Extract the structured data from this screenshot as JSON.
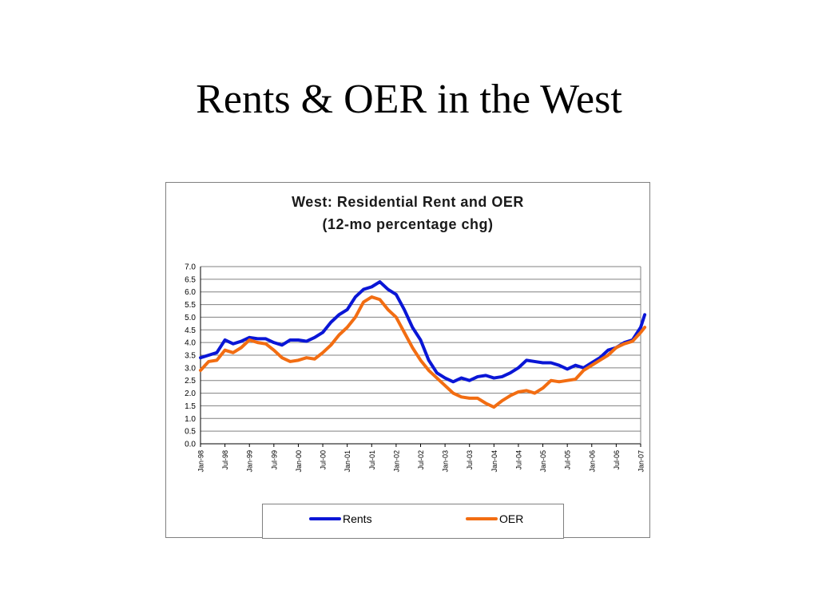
{
  "slide": {
    "title": "Rents & OER in the West"
  },
  "colors": {
    "rents": "#0a16d6",
    "oer": "#f26d12",
    "grid": "#808080"
  },
  "chart_data": {
    "type": "line",
    "title": "West: Residential Rent and OER",
    "subtitle": "(12-mo percentage chg)",
    "xlabel": "",
    "ylabel": "",
    "ylim": [
      0,
      7
    ],
    "yticks": [
      "0.0",
      "0.5",
      "1.0",
      "1.5",
      "2.0",
      "2.5",
      "3.0",
      "3.5",
      "4.0",
      "4.5",
      "5.0",
      "5.5",
      "6.0",
      "6.5",
      "7.0"
    ],
    "xticks": [
      "Jan-98",
      "Jul-98",
      "Jan-99",
      "Jul-99",
      "Jan-00",
      "Jul-00",
      "Jan-01",
      "Jul-01",
      "Jan-02",
      "Jul-02",
      "Jan-03",
      "Jul-03",
      "Jan-04",
      "Jul-04",
      "Jan-05",
      "Jul-05",
      "Jan-06",
      "Jul-06",
      "Jan-07"
    ],
    "grid": true,
    "legend_position": "bottom",
    "x": [
      "1998-01",
      "1998-03",
      "1998-05",
      "1998-07",
      "1998-09",
      "1998-11",
      "1999-01",
      "1999-03",
      "1999-05",
      "1999-07",
      "1999-09",
      "1999-11",
      "2000-01",
      "2000-03",
      "2000-05",
      "2000-07",
      "2000-09",
      "2000-11",
      "2001-01",
      "2001-03",
      "2001-05",
      "2001-07",
      "2001-09",
      "2001-11",
      "2002-01",
      "2002-03",
      "2002-05",
      "2002-07",
      "2002-09",
      "2002-11",
      "2003-01",
      "2003-03",
      "2003-05",
      "2003-07",
      "2003-09",
      "2003-11",
      "2004-01",
      "2004-03",
      "2004-05",
      "2004-07",
      "2004-09",
      "2004-11",
      "2005-01",
      "2005-03",
      "2005-05",
      "2005-07",
      "2005-09",
      "2005-11",
      "2006-01",
      "2006-03",
      "2006-05",
      "2006-07",
      "2006-09",
      "2006-11",
      "2007-01",
      "2007-02"
    ],
    "series": [
      {
        "name": "Rents",
        "color": "#0a16d6",
        "values": [
          3.4,
          3.5,
          3.6,
          4.1,
          3.95,
          4.05,
          4.2,
          4.15,
          4.15,
          4.0,
          3.9,
          4.1,
          4.1,
          4.05,
          4.2,
          4.4,
          4.8,
          5.1,
          5.3,
          5.8,
          6.1,
          6.2,
          6.4,
          6.1,
          5.9,
          5.3,
          4.6,
          4.1,
          3.3,
          2.8,
          2.6,
          2.45,
          2.6,
          2.5,
          2.65,
          2.7,
          2.6,
          2.65,
          2.8,
          3.0,
          3.3,
          3.25,
          3.2,
          3.2,
          3.1,
          2.95,
          3.1,
          3.0,
          3.2,
          3.4,
          3.7,
          3.8,
          4.0,
          4.1,
          4.6,
          5.1
        ]
      },
      {
        "name": "OER",
        "color": "#f26d12",
        "values": [
          2.9,
          3.25,
          3.3,
          3.7,
          3.6,
          3.8,
          4.1,
          4.0,
          3.95,
          3.7,
          3.4,
          3.25,
          3.3,
          3.4,
          3.35,
          3.6,
          3.9,
          4.3,
          4.6,
          5.0,
          5.6,
          5.8,
          5.7,
          5.3,
          5.0,
          4.4,
          3.8,
          3.3,
          2.9,
          2.6,
          2.3,
          2.0,
          1.85,
          1.8,
          1.8,
          1.6,
          1.45,
          1.7,
          1.9,
          2.05,
          2.1,
          2.0,
          2.2,
          2.5,
          2.45,
          2.5,
          2.55,
          2.9,
          3.1,
          3.3,
          3.5,
          3.8,
          3.95,
          4.05,
          4.4,
          4.6
        ]
      }
    ]
  }
}
